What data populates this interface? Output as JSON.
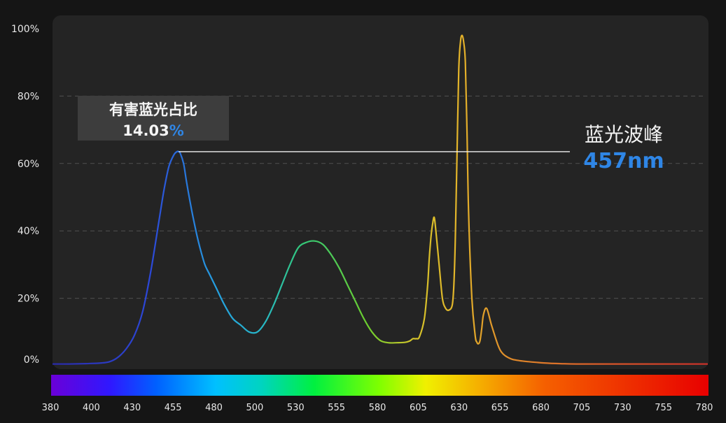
{
  "colors": {
    "background": "#151515",
    "panel": "#242424",
    "grid": "#505050",
    "accent_blue": "#2f86e6",
    "label_box": "#3d3d3d",
    "pointer_line": "#f2f2f2"
  },
  "chart_data": {
    "type": "line",
    "title": "",
    "xlabel": "",
    "ylabel": "",
    "xlim": [
      380,
      780
    ],
    "ylim": [
      0,
      100
    ],
    "grid": true,
    "x_ticks": [
      "380",
      "400",
      "430",
      "455",
      "480",
      "500",
      "530",
      "555",
      "580",
      "605",
      "630",
      "655",
      "680",
      "705",
      "730",
      "755",
      "780"
    ],
    "y_ticks": [
      "0%",
      "20%",
      "40%",
      "60%",
      "80%",
      "100%"
    ],
    "y_tick_values": [
      0,
      20,
      40,
      60,
      80,
      100
    ],
    "series": [
      {
        "x": [
          380,
          390,
          400,
          410,
          415,
          420,
          425,
          430,
          435,
          440,
          445,
          448,
          451,
          454,
          456,
          457,
          458,
          460,
          462,
          465,
          468,
          470,
          473,
          476,
          480,
          485,
          490,
          495,
          500,
          505,
          510,
          515,
          520,
          525,
          530,
          535,
          540,
          545,
          550,
          555,
          560,
          565,
          570,
          575,
          580,
          585,
          590,
          595,
          598,
          600,
          602,
          604,
          607,
          609,
          610,
          611,
          612,
          613,
          614,
          616,
          618,
          620,
          622,
          624,
          625,
          626,
          627,
          628,
          629,
          630,
          631,
          632,
          633,
          634,
          636,
          638,
          639,
          640,
          641,
          642,
          643,
          645,
          648,
          652,
          655,
          660,
          665,
          670,
          675,
          680,
          690,
          700,
          720,
          740,
          760,
          780
        ],
        "y": [
          0.5,
          0.5,
          0.6,
          0.8,
          1.2,
          2.5,
          5,
          9,
          16,
          28,
          43,
          52,
          59,
          62.5,
          63.5,
          63.5,
          63,
          60,
          54,
          46,
          39,
          35,
          30,
          27,
          23,
          18,
          14,
          12,
          10,
          10,
          13,
          18,
          24,
          30,
          35,
          36.6,
          37,
          36,
          33,
          29,
          24,
          19,
          14,
          10,
          7.5,
          6.8,
          6.8,
          6.9,
          7.3,
          8,
          8,
          8.6,
          14,
          24,
          32,
          38,
          42,
          44,
          40,
          30,
          20,
          17,
          16.5,
          18,
          24,
          40,
          65,
          88,
          96,
          98,
          96,
          90,
          70,
          45,
          20,
          9,
          7,
          6.5,
          7.5,
          11,
          15,
          17,
          12,
          6,
          3.5,
          2,
          1.5,
          1.2,
          1,
          0.8,
          0.6,
          0.5,
          0.5,
          0.5,
          0.5,
          0.5
        ]
      }
    ],
    "annotations": {
      "harm_label": "有害蓝光占比",
      "harm_number": "14.03",
      "harm_unit": "%",
      "peak_label": "蓝光波峰",
      "peak_value": "457nm",
      "peak_x": 457,
      "peak_y": 63.5
    }
  }
}
